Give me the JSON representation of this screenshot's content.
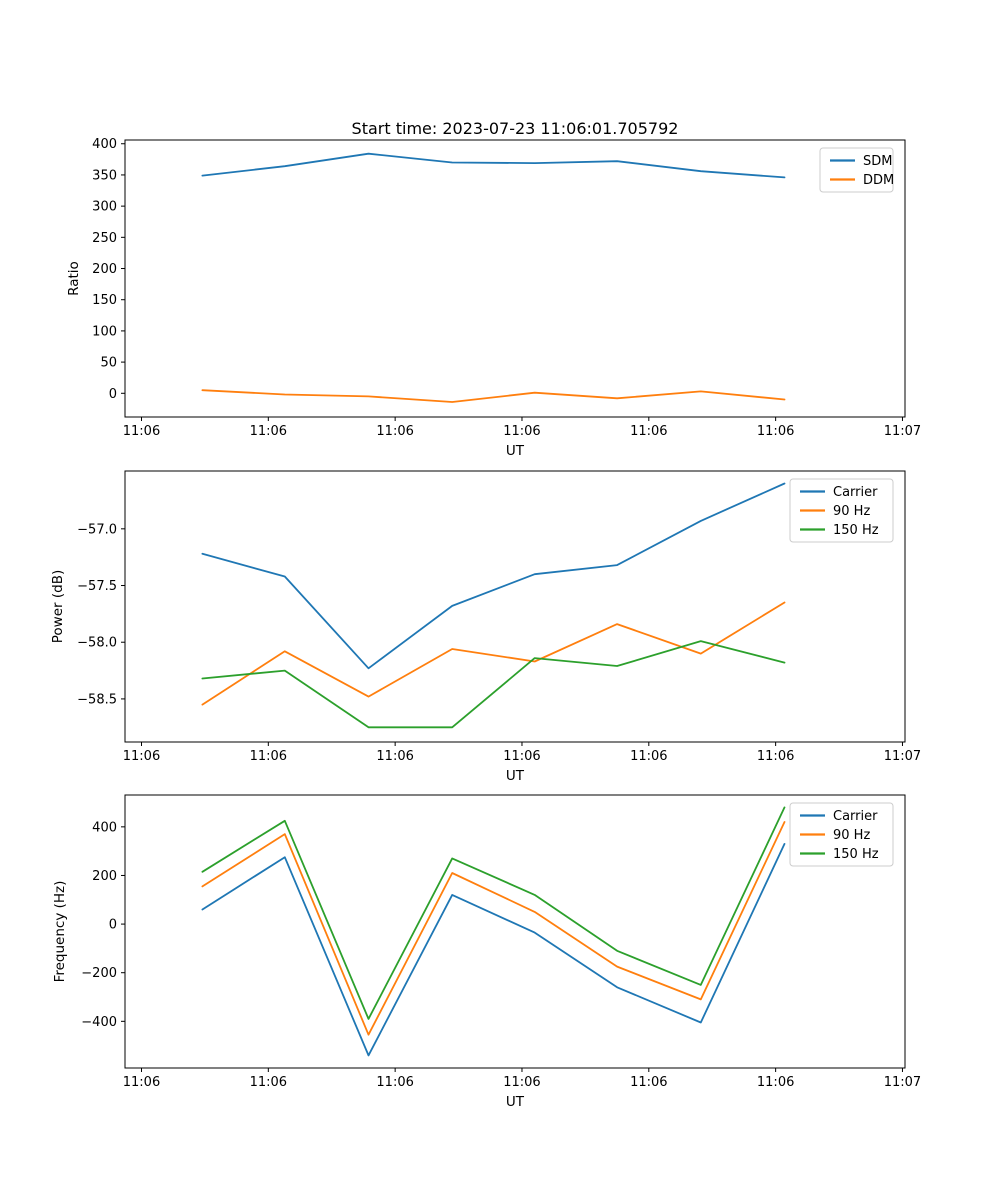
{
  "figure_title": "Start time: 2023-07-23 11:06:01.705792",
  "palette": {
    "blue": "#1f77b4",
    "orange": "#ff7f0e",
    "green": "#2ca02c"
  },
  "chart_data": [
    {
      "type": "line",
      "title": "Start time: 2023-07-23 11:06:01.705792",
      "xlabel": "UT",
      "ylabel": "Ratio",
      "x_offsets_seconds": [
        4.8,
        11.3,
        17.9,
        24.5,
        31.0,
        37.5,
        44.1,
        50.7
      ],
      "xlim": [
        -1.3,
        60.2
      ],
      "ylim": [
        -38,
        406
      ],
      "xticks": {
        "values": [
          0,
          10,
          20,
          30,
          40,
          50,
          60
        ],
        "labels": [
          "11:06",
          "11:06",
          "11:06",
          "11:06",
          "11:06",
          "11:06",
          "11:07"
        ]
      },
      "yticks": {
        "values": [
          0,
          50,
          100,
          150,
          200,
          250,
          300,
          350,
          400
        ],
        "labels": [
          "0",
          "50",
          "100",
          "150",
          "200",
          "250",
          "300",
          "350",
          "400"
        ]
      },
      "grid": false,
      "legend_position": "upper right",
      "series": [
        {
          "name": "SDM",
          "color": "#1f77b4",
          "values": [
            349,
            364,
            384,
            370,
            369,
            372,
            356,
            346
          ]
        },
        {
          "name": "DDM",
          "color": "#ff7f0e",
          "values": [
            5,
            -2,
            -5,
            -14,
            1,
            -8,
            3,
            -10
          ]
        }
      ]
    },
    {
      "type": "line",
      "title": "",
      "xlabel": "UT",
      "ylabel": "Power (dB)",
      "x_offsets_seconds": [
        4.8,
        11.3,
        17.9,
        24.5,
        31.0,
        37.5,
        44.1,
        50.7
      ],
      "xlim": [
        -1.3,
        60.2
      ],
      "ylim": [
        -58.88,
        -56.49
      ],
      "xticks": {
        "values": [
          0,
          10,
          20,
          30,
          40,
          50,
          60
        ],
        "labels": [
          "11:06",
          "11:06",
          "11:06",
          "11:06",
          "11:06",
          "11:06",
          "11:07"
        ]
      },
      "yticks": {
        "values": [
          -58.5,
          -58.0,
          -57.5,
          -57.0
        ],
        "labels": [
          "−58.5",
          "−58.0",
          "−57.5",
          "−57.0"
        ]
      },
      "grid": false,
      "legend_position": "upper right",
      "series": [
        {
          "name": "Carrier",
          "color": "#1f77b4",
          "values": [
            -57.22,
            -57.42,
            -58.23,
            -57.68,
            -57.4,
            -57.32,
            -56.93,
            -56.6
          ]
        },
        {
          "name": "90 Hz",
          "color": "#ff7f0e",
          "values": [
            -58.55,
            -58.08,
            -58.48,
            -58.06,
            -58.17,
            -57.84,
            -58.1,
            -57.65
          ]
        },
        {
          "name": "150 Hz",
          "color": "#2ca02c",
          "values": [
            -58.32,
            -58.25,
            -58.75,
            -58.75,
            -58.14,
            -58.21,
            -57.99,
            -58.18
          ]
        }
      ]
    },
    {
      "type": "line",
      "title": "",
      "xlabel": "UT",
      "ylabel": "Frequency (Hz)",
      "x_offsets_seconds": [
        4.8,
        11.3,
        17.9,
        24.5,
        31.0,
        37.5,
        44.1,
        50.7
      ],
      "xlim": [
        -1.3,
        60.2
      ],
      "ylim": [
        -592,
        531
      ],
      "xticks": {
        "values": [
          0,
          10,
          20,
          30,
          40,
          50,
          60
        ],
        "labels": [
          "11:06",
          "11:06",
          "11:06",
          "11:06",
          "11:06",
          "11:06",
          "11:07"
        ]
      },
      "yticks": {
        "values": [
          -400,
          -200,
          0,
          200,
          400
        ],
        "labels": [
          "−400",
          "−200",
          "0",
          "200",
          "400"
        ]
      },
      "grid": false,
      "legend_position": "upper right",
      "series": [
        {
          "name": "Carrier",
          "color": "#1f77b4",
          "values": [
            60,
            275,
            -540,
            120,
            -35,
            -260,
            -405,
            330
          ]
        },
        {
          "name": "90 Hz",
          "color": "#ff7f0e",
          "values": [
            155,
            370,
            -455,
            210,
            50,
            -175,
            -310,
            420
          ]
        },
        {
          "name": "150 Hz",
          "color": "#2ca02c",
          "values": [
            215,
            425,
            -390,
            270,
            120,
            -110,
            -250,
            480
          ]
        }
      ]
    }
  ]
}
